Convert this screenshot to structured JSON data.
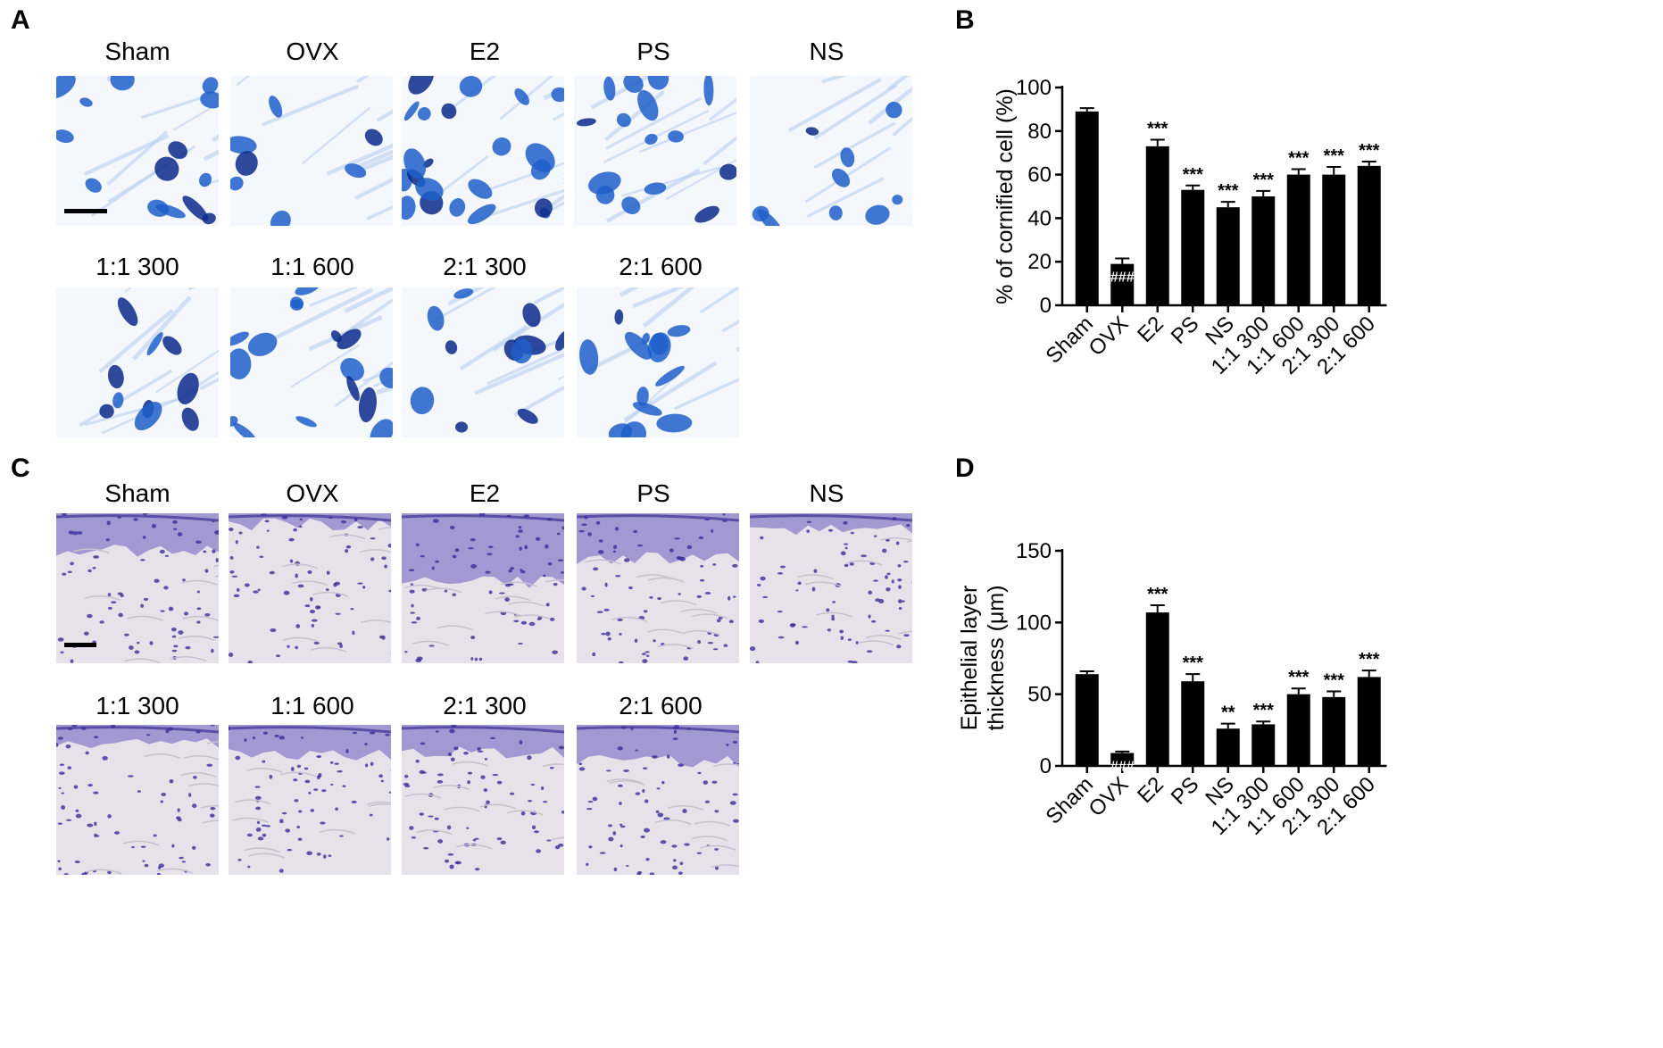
{
  "panels": {
    "A": {
      "letter": "A",
      "top_labels": [
        "Sham",
        "OVX",
        "E2",
        "PS",
        "NS"
      ],
      "bottom_labels": [
        "1:1 300",
        "1:1 600",
        "2:1 300",
        "2:1 600"
      ]
    },
    "C": {
      "letter": "C",
      "top_labels": [
        "Sham",
        "OVX",
        "E2",
        "PS",
        "NS"
      ],
      "bottom_labels": [
        "1:1 300",
        "1:1 600",
        "2:1 300",
        "2:1 600"
      ]
    },
    "B": {
      "letter": "B"
    },
    "D": {
      "letter": "D"
    }
  },
  "colors": {
    "bar": "#000000",
    "cytology_stain": "#1f5fc9",
    "cytology_dark": "#0a2a8a",
    "histology_stain": "#3b2f9a",
    "histology_light": "#e7e2ea"
  },
  "chart_data": [
    {
      "panel": "B",
      "type": "bar",
      "categories": [
        "Sham",
        "OVX",
        "E2",
        "PS",
        "NS",
        "1:1 300",
        "1:1 600",
        "2:1 300",
        "2:1 600"
      ],
      "values": [
        89,
        19,
        73,
        53,
        45,
        50,
        60,
        60,
        64
      ],
      "errors": [
        1.5,
        2.5,
        3,
        2,
        2.5,
        2.5,
        2.5,
        3.5,
        2
      ],
      "annotations": [
        "",
        "###",
        "***",
        "***",
        "***",
        "***",
        "***",
        "***",
        "***"
      ],
      "ylabel": "% of cornified cell (%)",
      "ylim": [
        0,
        100
      ],
      "yticks": [
        0,
        20,
        40,
        60,
        80,
        100
      ],
      "title": "",
      "xlabel": ""
    },
    {
      "panel": "D",
      "type": "bar",
      "categories": [
        "Sham",
        "OVX",
        "E2",
        "PS",
        "NS",
        "1:1 300",
        "1:1 600",
        "2:1 300",
        "2:1 600"
      ],
      "values": [
        64,
        9,
        107,
        59,
        26,
        29,
        50,
        48,
        62
      ],
      "errors": [
        2,
        1,
        5,
        5,
        3.5,
        2,
        4,
        4,
        4.5
      ],
      "annotations": [
        "",
        "###",
        "***",
        "***",
        "**",
        "***",
        "***",
        "***",
        "***"
      ],
      "ylabel": "Epithelial layer\nthickness (μm)",
      "ylim": [
        0,
        150
      ],
      "yticks": [
        0,
        50,
        100,
        150
      ],
      "title": "",
      "xlabel": ""
    }
  ]
}
